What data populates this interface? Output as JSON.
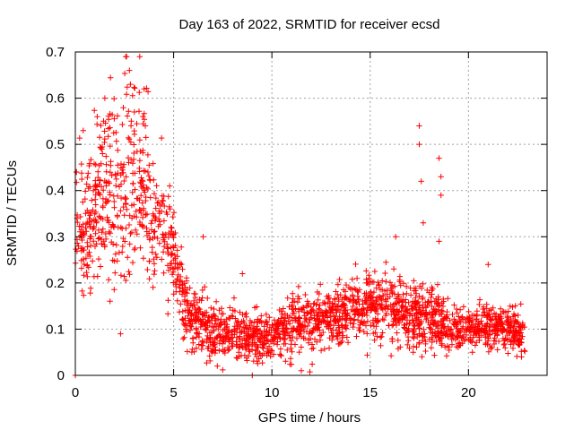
{
  "chart_data": {
    "type": "scatter",
    "title": "Day 163 of 2022, SRMTID for receiver ecsd",
    "xlabel": "GPS time / hours",
    "ylabel": "SRMTID / TECUs",
    "xlim": [
      0,
      24
    ],
    "ylim": [
      0,
      0.7
    ],
    "grid": true,
    "legend": "none",
    "marker": "+",
    "series_color": "#ff0000",
    "x_ticks": [
      0,
      5,
      10,
      15,
      20
    ],
    "x_tick_labels": [
      "0",
      "5",
      "10",
      "15",
      "20"
    ],
    "y_ticks": [
      0,
      0.1,
      0.2,
      0.3,
      0.4,
      0.5,
      0.6,
      0.7
    ],
    "y_tick_labels": [
      "0",
      "0.1",
      "0.2",
      "0.3",
      "0.4",
      "0.5",
      "0.6",
      "0.7"
    ],
    "trend": [
      {
        "t": 0.0,
        "mean": 0.34,
        "spread": 0.1
      },
      {
        "t": 0.5,
        "mean": 0.3,
        "spread": 0.1
      },
      {
        "t": 1.0,
        "mean": 0.36,
        "spread": 0.11
      },
      {
        "t": 1.5,
        "mean": 0.4,
        "spread": 0.13
      },
      {
        "t": 2.0,
        "mean": 0.38,
        "spread": 0.14
      },
      {
        "t": 2.5,
        "mean": 0.42,
        "spread": 0.14
      },
      {
        "t": 3.0,
        "mean": 0.43,
        "spread": 0.13
      },
      {
        "t": 3.5,
        "mean": 0.38,
        "spread": 0.12
      },
      {
        "t": 4.0,
        "mean": 0.33,
        "spread": 0.09
      },
      {
        "t": 4.5,
        "mean": 0.32,
        "spread": 0.08
      },
      {
        "t": 5.0,
        "mean": 0.27,
        "spread": 0.07
      },
      {
        "t": 5.5,
        "mean": 0.17,
        "spread": 0.05
      },
      {
        "t": 6.0,
        "mean": 0.12,
        "spread": 0.04
      },
      {
        "t": 7.0,
        "mean": 0.09,
        "spread": 0.04
      },
      {
        "t": 8.0,
        "mean": 0.09,
        "spread": 0.04
      },
      {
        "t": 9.0,
        "mean": 0.08,
        "spread": 0.035
      },
      {
        "t": 10.0,
        "mean": 0.08,
        "spread": 0.035
      },
      {
        "t": 11.0,
        "mean": 0.11,
        "spread": 0.045
      },
      {
        "t": 12.0,
        "mean": 0.12,
        "spread": 0.045
      },
      {
        "t": 13.0,
        "mean": 0.12,
        "spread": 0.045
      },
      {
        "t": 14.0,
        "mean": 0.14,
        "spread": 0.045
      },
      {
        "t": 15.0,
        "mean": 0.16,
        "spread": 0.05
      },
      {
        "t": 16.0,
        "mean": 0.15,
        "spread": 0.05
      },
      {
        "t": 17.0,
        "mean": 0.13,
        "spread": 0.05
      },
      {
        "t": 18.0,
        "mean": 0.13,
        "spread": 0.05
      },
      {
        "t": 19.0,
        "mean": 0.1,
        "spread": 0.03
      },
      {
        "t": 20.0,
        "mean": 0.1,
        "spread": 0.03
      },
      {
        "t": 21.0,
        "mean": 0.11,
        "spread": 0.03
      },
      {
        "t": 22.0,
        "mean": 0.11,
        "spread": 0.03
      },
      {
        "t": 22.8,
        "mean": 0.09,
        "spread": 0.03
      }
    ],
    "highlights": [
      {
        "x": 0.0,
        "y": 0.0
      },
      {
        "x": 0.05,
        "y": 0.44
      },
      {
        "x": 0.4,
        "y": 0.53
      },
      {
        "x": 1.5,
        "y": 0.6
      },
      {
        "x": 2.75,
        "y": 0.66
      },
      {
        "x": 2.8,
        "y": 0.63
      },
      {
        "x": 3.5,
        "y": 0.62
      },
      {
        "x": 3.0,
        "y": 0.57
      },
      {
        "x": 2.3,
        "y": 0.09
      },
      {
        "x": 4.8,
        "y": 0.41
      },
      {
        "x": 6.5,
        "y": 0.3
      },
      {
        "x": 8.5,
        "y": 0.22
      },
      {
        "x": 9.0,
        "y": 0.0
      },
      {
        "x": 11.5,
        "y": 0.01
      },
      {
        "x": 16.3,
        "y": 0.3
      },
      {
        "x": 17.5,
        "y": 0.54
      },
      {
        "x": 17.5,
        "y": 0.5
      },
      {
        "x": 17.6,
        "y": 0.42
      },
      {
        "x": 17.7,
        "y": 0.33
      },
      {
        "x": 18.5,
        "y": 0.47
      },
      {
        "x": 18.6,
        "y": 0.43
      },
      {
        "x": 18.6,
        "y": 0.39
      },
      {
        "x": 18.5,
        "y": 0.29
      },
      {
        "x": 20.2,
        "y": 0.05
      },
      {
        "x": 21.0,
        "y": 0.24
      },
      {
        "x": 22.7,
        "y": 0.04
      }
    ],
    "point_count": 2300,
    "x_extent": [
      0,
      22.9
    ]
  }
}
